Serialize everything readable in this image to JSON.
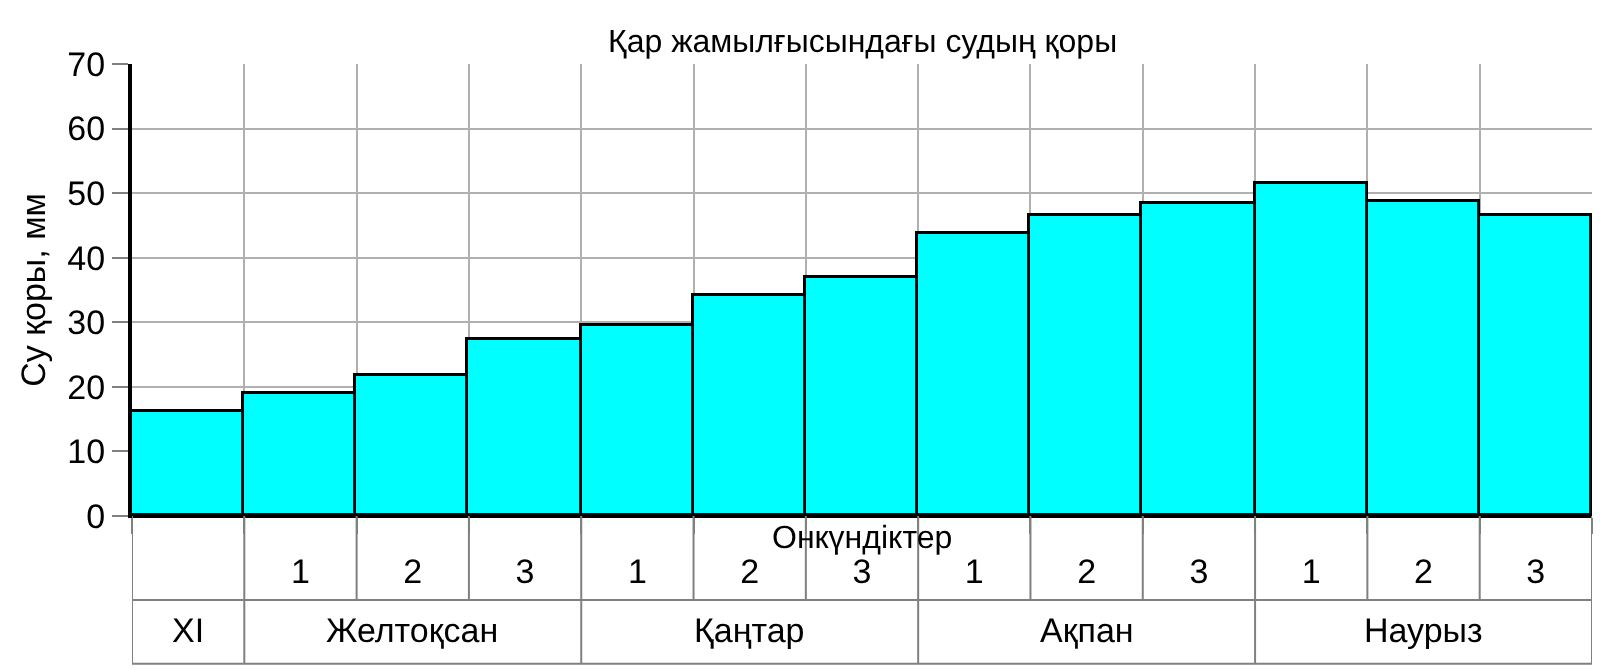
{
  "chart_data": {
    "type": "bar",
    "title": "Қар жамылғысындағы судың қоры",
    "xlabel": "Онкүндіктер",
    "ylabel": "Су қоры, мм",
    "categories": [
      null,
      "1",
      "2",
      "3",
      "1",
      "2",
      "3",
      "1",
      "2",
      "3",
      "1",
      "2",
      "3"
    ],
    "values": [
      16,
      19,
      21.7,
      27.2,
      29.4,
      34,
      36.8,
      43.8,
      46.4,
      48.3,
      51.3,
      48.5,
      46.5
    ],
    "color": "#00ffff",
    "ylim": [
      0,
      70
    ],
    "yticks": [
      0,
      10,
      20,
      30,
      40,
      50,
      60,
      70
    ],
    "grid": true,
    "annotations": [
      "XI",
      "Желтоқсан",
      "Қаңтар",
      "Ақпан",
      "Наурыз"
    ]
  }
}
